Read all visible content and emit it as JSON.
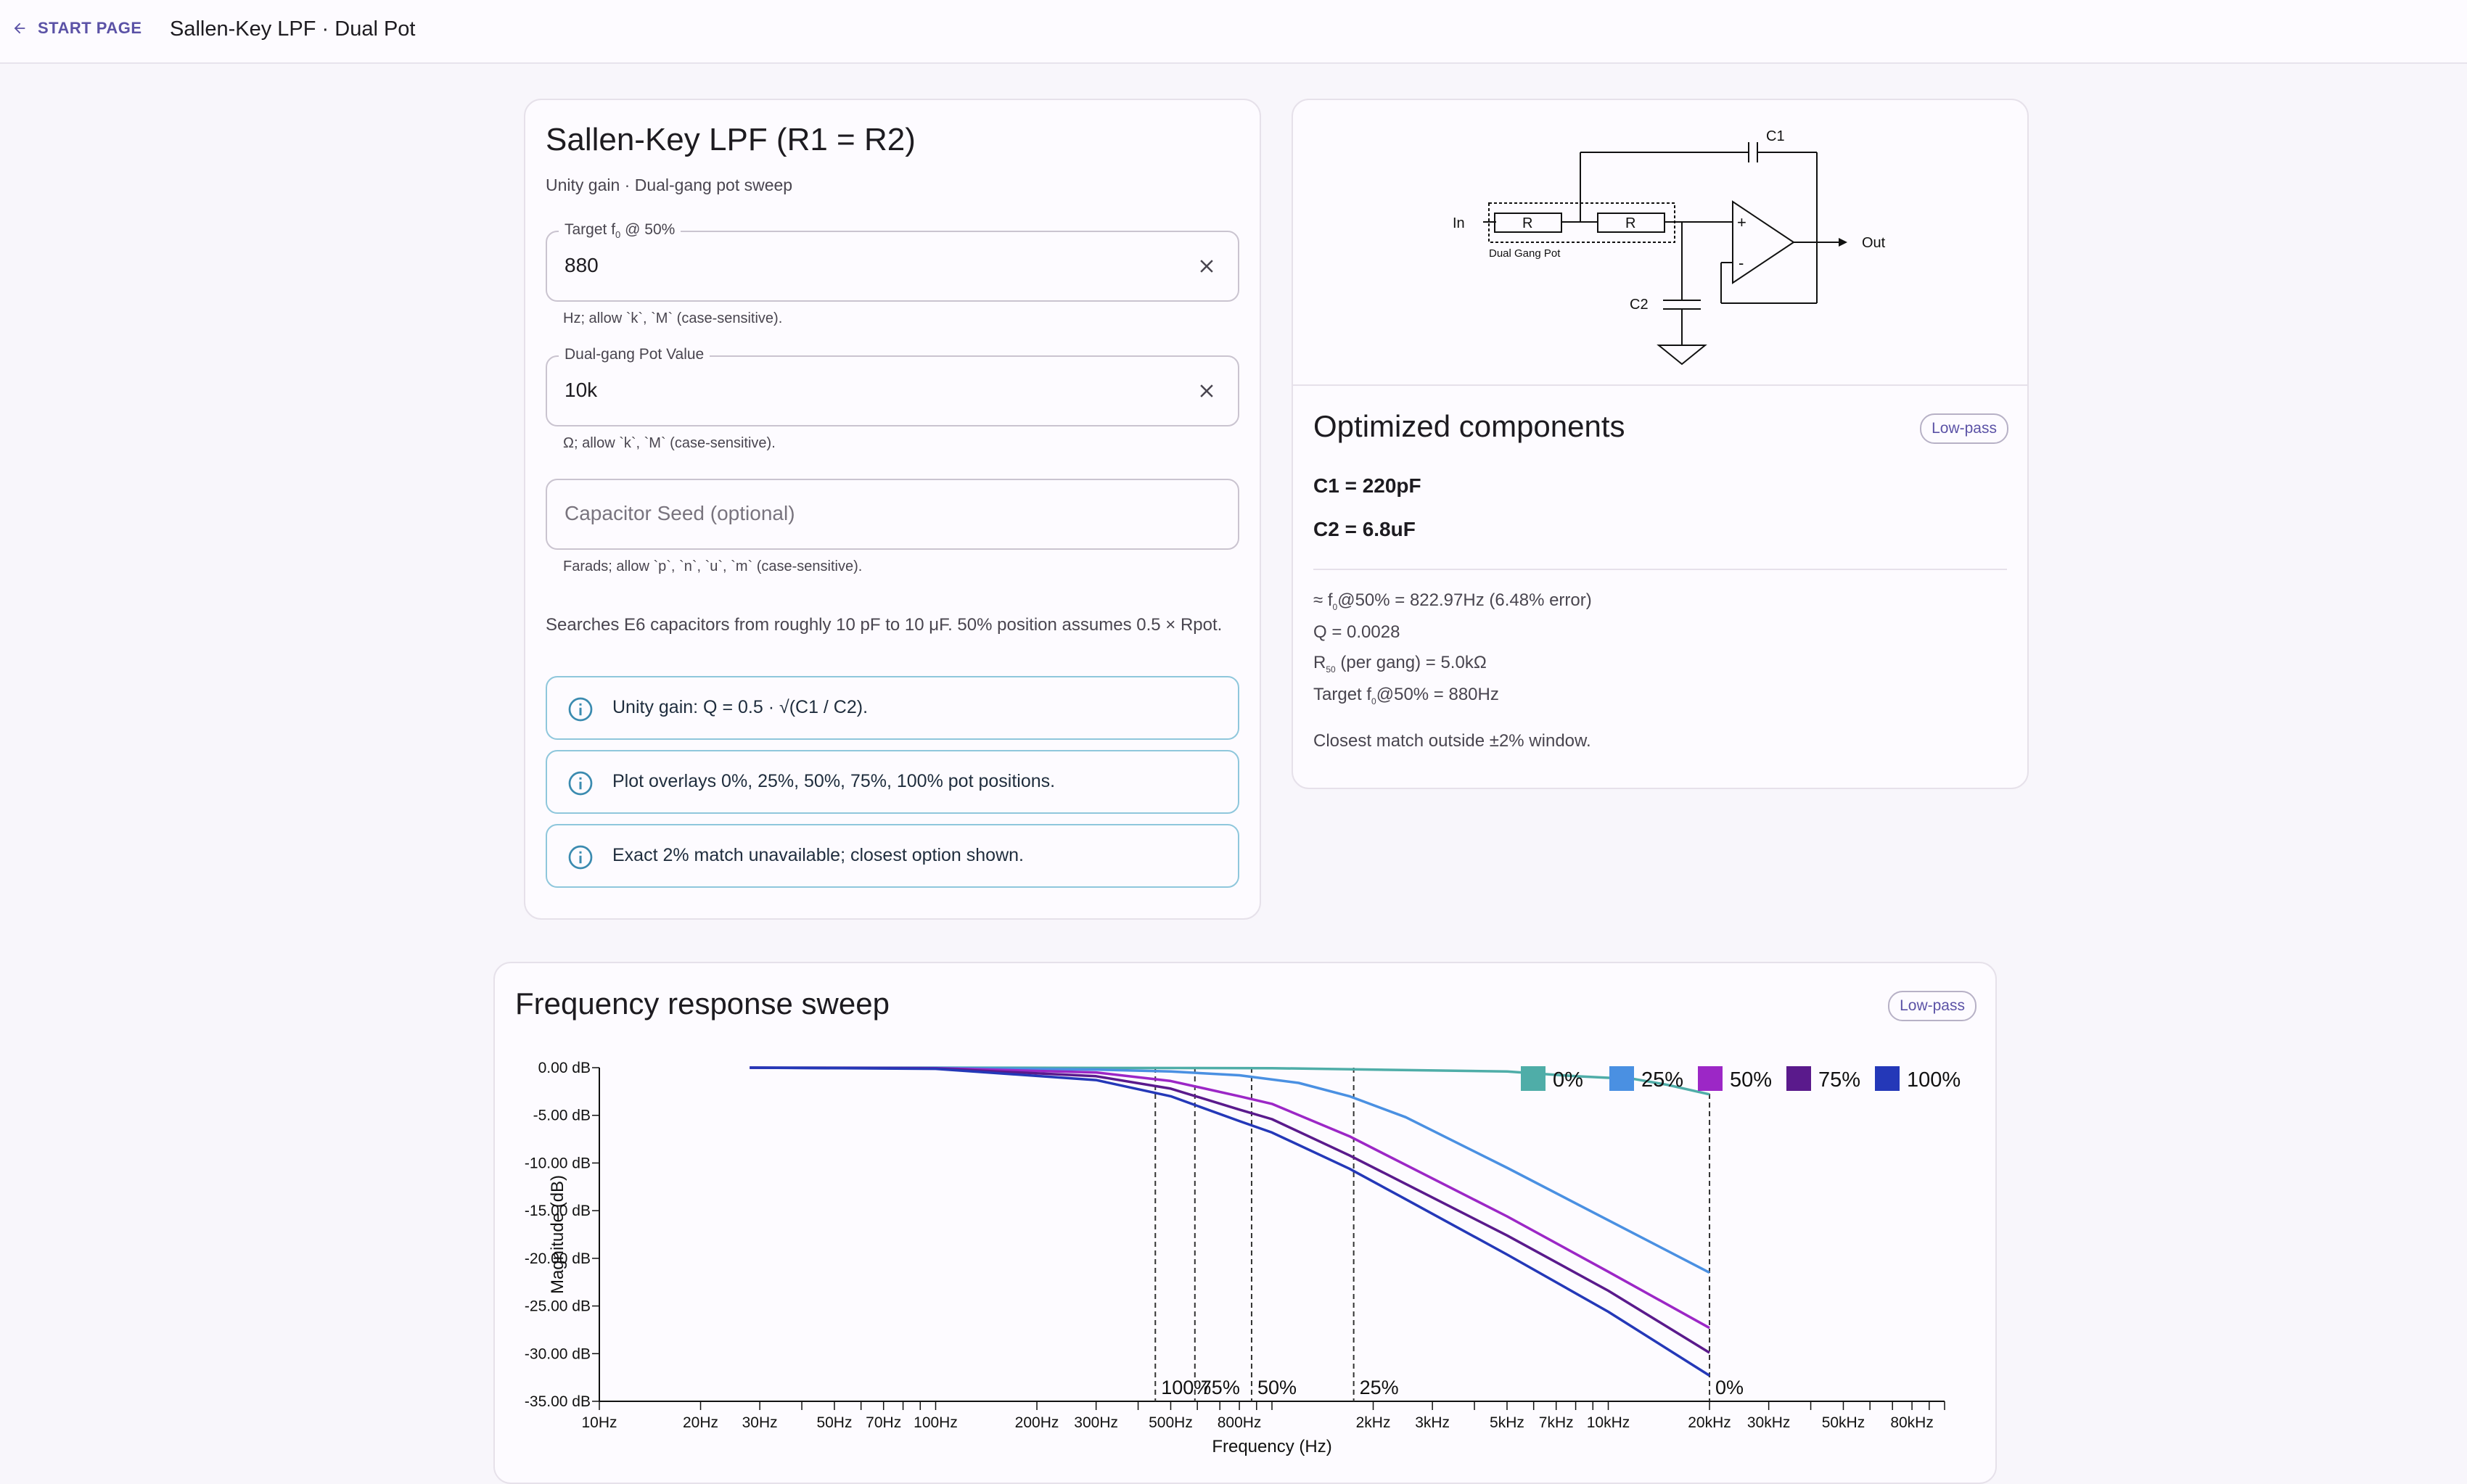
{
  "topbar": {
    "back_label": "START PAGE",
    "title": "Sallen-Key LPF · Dual Pot"
  },
  "input_card": {
    "title": "Sallen-Key LPF (R1 = R2)",
    "subtitle": "Unity gain · Dual-gang pot sweep",
    "fields": [
      {
        "label_pre": "Target f",
        "label_sub": "0",
        "label_post": " @ 50%",
        "value": "880",
        "hint": "Hz; allow `k`, `M` (case-sensitive)."
      },
      {
        "label": "Dual-gang Pot Value",
        "value": "10k",
        "hint": "Ω; allow `k`, `M` (case-sensitive)."
      },
      {
        "placeholder": "Capacitor Seed (optional)",
        "hint": "Farads; allow `p`, `n`, `u`, `m` (case-sensitive)."
      }
    ],
    "note": "Searches E6 capacitors from roughly 10 pF to 10 μF. 50% position assumes 0.5 × Rpot.",
    "infos": [
      "Unity gain: Q = 0.5 · √(C1 / C2).",
      "Plot overlays 0%, 25%, 50%, 75%, 100% pot positions.",
      "Exact 2% match unavailable; closest option shown."
    ]
  },
  "schematic": {
    "in_label": "In",
    "out_label": "Out",
    "c1_label": "C1",
    "c2_label": "C2",
    "r_label": "R",
    "pot_label": "Dual Gang Pot",
    "plus": "+",
    "minus": "-"
  },
  "results": {
    "title": "Optimized components",
    "chip": "Low-pass",
    "c1": "C1 = 220pF",
    "c2": "C2 = 6.8uF",
    "f50": {
      "pre": "≈ f",
      "sub": "0",
      "post": "@50% = 822.97Hz (6.48% error)"
    },
    "q": "Q = 0.0028",
    "r50": {
      "pre": "R",
      "sub": "50",
      "post": " (per gang) = 5.0kΩ"
    },
    "target": {
      "pre": "Target f",
      "sub": "0",
      "post": "@50% = 880Hz"
    },
    "closest": "Closest match outside ±2% window."
  },
  "chart_card": {
    "title": "Frequency response sweep",
    "chip": "Low-pass"
  },
  "chart_data": {
    "type": "line",
    "xscale": "log",
    "xlabel": "Frequency (Hz)",
    "ylabel": "Magnitude (dB)",
    "xlim": [
      10,
      100000
    ],
    "ylim": [
      -35,
      0
    ],
    "x_ticks": [
      {
        "v": 10,
        "t": "10Hz"
      },
      {
        "v": 20,
        "t": "20Hz"
      },
      {
        "v": 30,
        "t": "30Hz"
      },
      {
        "v": 50,
        "t": "50Hz"
      },
      {
        "v": 70,
        "t": "70Hz"
      },
      {
        "v": 100,
        "t": "100Hz"
      },
      {
        "v": 200,
        "t": "200Hz"
      },
      {
        "v": 300,
        "t": "300Hz"
      },
      {
        "v": 500,
        "t": "500Hz"
      },
      {
        "v": 800,
        "t": "800Hz"
      },
      {
        "v": 2000,
        "t": "2kHz"
      },
      {
        "v": 3000,
        "t": "3kHz"
      },
      {
        "v": 5000,
        "t": "5kHz"
      },
      {
        "v": 7000,
        "t": "7kHz"
      },
      {
        "v": 10000,
        "t": "10kHz"
      },
      {
        "v": 20000,
        "t": "20kHz"
      },
      {
        "v": 30000,
        "t": "30kHz"
      },
      {
        "v": 50000,
        "t": "50kHz"
      },
      {
        "v": 80000,
        "t": "80kHz"
      }
    ],
    "y_ticks": [
      {
        "v": 0,
        "t": "0.00 dB"
      },
      {
        "v": -5,
        "t": "-5.00 dB"
      },
      {
        "v": -10,
        "t": "-10.00 dB"
      },
      {
        "v": -15,
        "t": "-15.00 dB"
      },
      {
        "v": -20,
        "t": "-20.00 dB"
      },
      {
        "v": -25,
        "t": "-25.00 dB"
      },
      {
        "v": -30,
        "t": "-30.00 dB"
      },
      {
        "v": -35,
        "t": "-35.00 dB"
      }
    ],
    "legend_position": "top-right",
    "series": [
      {
        "name": "0%",
        "color": "#4fada8",
        "x": [
          28,
          100,
          1000,
          5000,
          8000,
          12000,
          15000,
          20000
        ],
        "y": [
          0,
          0,
          -0.05,
          -0.4,
          -0.9,
          -1.2,
          -1.8,
          -2.8
        ]
      },
      {
        "name": "25%",
        "color": "#4a90e2",
        "x": [
          28,
          100,
          300,
          500,
          800,
          1200,
          1700,
          2500,
          5000,
          10000,
          20000
        ],
        "y": [
          0,
          -0.03,
          -0.2,
          -0.4,
          -0.8,
          -1.6,
          -3,
          -5.2,
          -10.5,
          -16,
          -21.5
        ]
      },
      {
        "name": "50%",
        "color": "#9c27c6",
        "x": [
          28,
          100,
          300,
          500,
          800,
          1000,
          1700,
          2500,
          5000,
          10000,
          20000
        ],
        "y": [
          0,
          -0.05,
          -0.5,
          -1.4,
          -3,
          -3.8,
          -7.2,
          -10.2,
          -15.6,
          -21.4,
          -27.3
        ]
      },
      {
        "name": "75%",
        "color": "#5a1a8c",
        "x": [
          28,
          100,
          300,
          500,
          800,
          1000,
          1700,
          2500,
          5000,
          10000,
          20000
        ],
        "y": [
          0,
          -0.08,
          -0.9,
          -2.2,
          -4.4,
          -5.4,
          -9.2,
          -12.2,
          -17.6,
          -23.4,
          -29.9
        ]
      },
      {
        "name": "100%",
        "color": "#2438b8",
        "x": [
          28,
          100,
          300,
          500,
          800,
          1000,
          1700,
          2500,
          5000,
          10000,
          20000
        ],
        "y": [
          0,
          -0.12,
          -1.3,
          -3,
          -5.6,
          -6.8,
          -10.6,
          -13.8,
          -19.6,
          -25.6,
          -32.3
        ]
      }
    ],
    "markers": [
      {
        "label": "100%",
        "x": 450
      },
      {
        "label": "75%",
        "x": 590
      },
      {
        "label": "50%",
        "x": 870
      },
      {
        "label": "25%",
        "x": 1750
      },
      {
        "label": "0%",
        "x": 20000
      }
    ]
  }
}
